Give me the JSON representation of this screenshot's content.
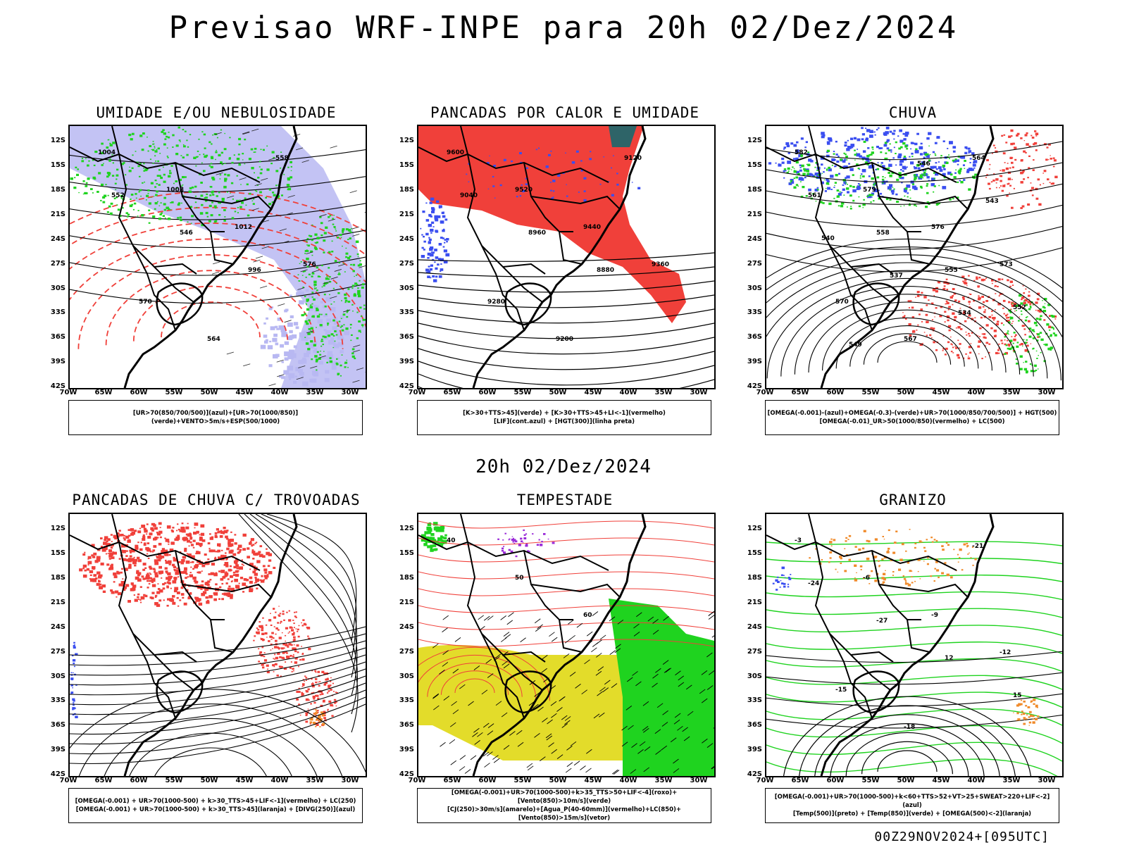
{
  "page": {
    "title": "Previsao WRF-INPE  para 20h 02/Dez/2024",
    "mid_time": "20h 02/Dez/2024",
    "run_info": "00Z29NOV2024+[095UTC]"
  },
  "axes": {
    "lat_labels": [
      "12S",
      "15S",
      "18S",
      "21S",
      "24S",
      "27S",
      "30S",
      "33S",
      "36S",
      "39S",
      "42S"
    ],
    "lon_labels": [
      "70W",
      "65W",
      "60W",
      "55W",
      "50W",
      "45W",
      "40W",
      "35W",
      "30W"
    ]
  },
  "colors": {
    "blue": "#3a4ef0",
    "lavender": "#b8b8f2",
    "green": "#1fd31f",
    "red": "#f0403a",
    "orange": "#f08a2a",
    "yellow": "#e3dc2a",
    "teal": "#2e6468",
    "purple": "#9a2ad8",
    "black": "#000000"
  },
  "chart_data": [
    {
      "type": "heatmap",
      "title": "UMIDADE E/OU NEBULOSIDADE",
      "legend": [
        "[UR>70(850/700/500)](azul)+[UR>70(1000/850)](verde)+VENTO>5m/s+ESP(500/1000)"
      ],
      "contour_labels": [
        "1004",
        "1008",
        "1012",
        "576",
        "570",
        "564",
        "558",
        "552",
        "546",
        "996"
      ],
      "xlim": [
        -70,
        -28
      ],
      "ylim": [
        -42,
        -10
      ]
    },
    {
      "type": "heatmap",
      "title": "PANCADAS POR CALOR E UMIDADE",
      "legend": [
        "[K>30+TTS>45](verde) + [K>30+TTS>45+LI<-1](vermelho)",
        "[LIF](cont.azul) + [HGT(300)](linha preta)"
      ],
      "contour_labels": [
        "9600",
        "9520",
        "9440",
        "9360",
        "9280",
        "9200",
        "9120",
        "9040",
        "8960",
        "8880"
      ],
      "xlim": [
        -70,
        -28
      ],
      "ylim": [
        -42,
        -10
      ]
    },
    {
      "type": "heatmap",
      "title": "CHUVA",
      "legend": [
        "[OMEGA(-0.001)-(azul)+OMEGA(-0.3)-(verde)+UR>70(1000/850/700/500)] + HGT(500)",
        "[OMEGA(-0.01)_UR>50(1000/850)(vermelho) + LC(500)"
      ],
      "contour_labels": [
        "582",
        "579",
        "576",
        "573",
        "570",
        "567",
        "564",
        "561",
        "558",
        "555",
        "552",
        "549",
        "546",
        "543",
        "540",
        "537",
        "534"
      ],
      "xlim": [
        -70,
        -28
      ],
      "ylim": [
        -42,
        -10
      ]
    },
    {
      "type": "heatmap",
      "title": "PANCADAS DE CHUVA C/ TROVOADAS",
      "legend": [
        "[OMEGA(-0.001) + UR>70(1000-500) + k>30_TTS>45+LIF<-1](vermelho) + LC(250)",
        "[OMEGA(-0.001) + UR>70(1000-500) + k>30_TTS>45](laranja) + [DIVG(250)](azul)"
      ],
      "contour_labels": [],
      "xlim": [
        -70,
        -28
      ],
      "ylim": [
        -42,
        -10
      ]
    },
    {
      "type": "heatmap",
      "title": "TEMPESTADE",
      "legend": [
        "[OMEGA(-0.001)+UR>70(1000-500)+k>35_TTS>50+LIF<-4](roxo)+[Vento(850)>10m/s](verde)",
        "[CJ(250)>30m/s](amarelo)+[Agua_P(40-60mm)](vermelho)+LC(850)+[Vento(850)>15m/s](vetor)"
      ],
      "contour_labels": [
        "40",
        "50",
        "60"
      ],
      "xlim": [
        -70,
        -28
      ],
      "ylim": [
        -42,
        -10
      ]
    },
    {
      "type": "heatmap",
      "title": "GRANIZO",
      "legend": [
        "[OMEGA(-0.001)+UR>70(1000-500)+k<60+TTS>52+VT>25+SWEAT>220+LIF<-2](azul)",
        "[Temp(500)](preto) + [Temp(850)](verde) + [OMEGA(500)<-2](laranja)"
      ],
      "contour_labels": [
        "-3",
        "-6",
        "-9",
        "-12",
        "-15",
        "-18",
        "-21",
        "-24",
        "-27",
        "12",
        "15"
      ],
      "xlim": [
        -70,
        -28
      ],
      "ylim": [
        -42,
        -10
      ]
    }
  ]
}
